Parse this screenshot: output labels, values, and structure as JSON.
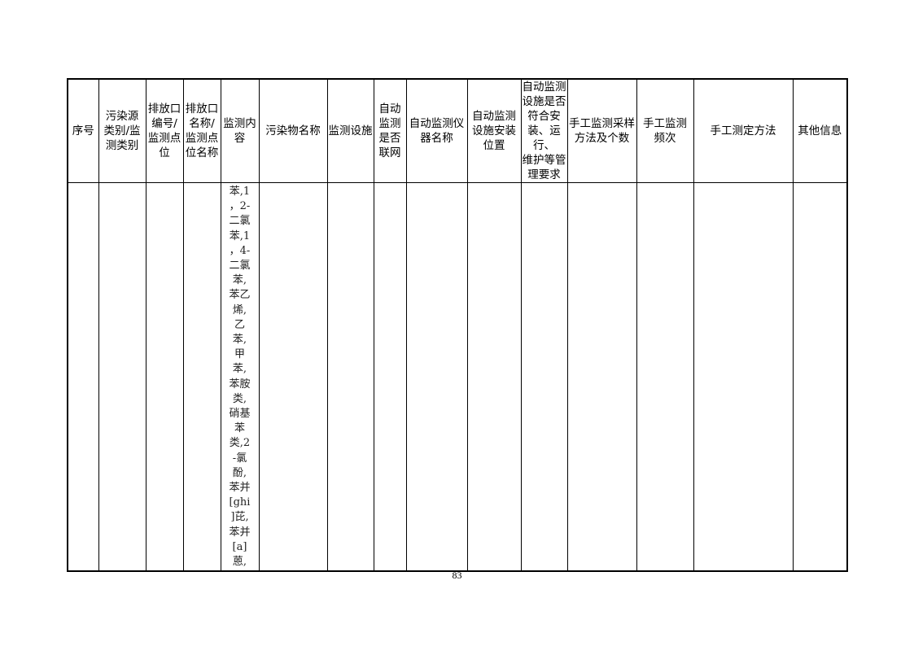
{
  "table": {
    "headers": [
      [
        "序号"
      ],
      [
        "污染源",
        "类别/监",
        "测类别"
      ],
      [
        "排放口",
        "编号/",
        "监测点",
        "位"
      ],
      [
        "排放口",
        "名称/",
        "监测点",
        "位名称"
      ],
      [
        "监测内",
        "容"
      ],
      [
        "污染物名称"
      ],
      [
        "监测设施"
      ],
      [
        "自动",
        "监测",
        "是否",
        "联网"
      ],
      [
        "自动监测仪",
        "器名称"
      ],
      [
        "自动监测",
        "设施安装",
        "位置"
      ],
      [
        "自动监测",
        "设施是否",
        "符合安",
        "装、运行、",
        "维护等管",
        "理要求"
      ],
      [
        "手工监测采样",
        "方法及个数"
      ],
      [
        "手工监测",
        "频次"
      ],
      [
        "手工测定方法"
      ],
      [
        "其他信息"
      ]
    ],
    "row": {
      "monitoring_content_lines": [
        "苯,1",
        "，2-",
        "二氯",
        "苯,1",
        "，4-",
        "二氯",
        "苯,",
        "苯乙",
        "烯,",
        "乙",
        "苯,",
        "甲",
        "苯,",
        "苯胺",
        "类,",
        "硝基",
        "苯",
        "类,2",
        "-氯",
        "酚,",
        "苯并",
        "[ghi",
        "]芘,",
        "苯并",
        "[a]",
        "蒽,"
      ]
    }
  },
  "page_number": "83"
}
